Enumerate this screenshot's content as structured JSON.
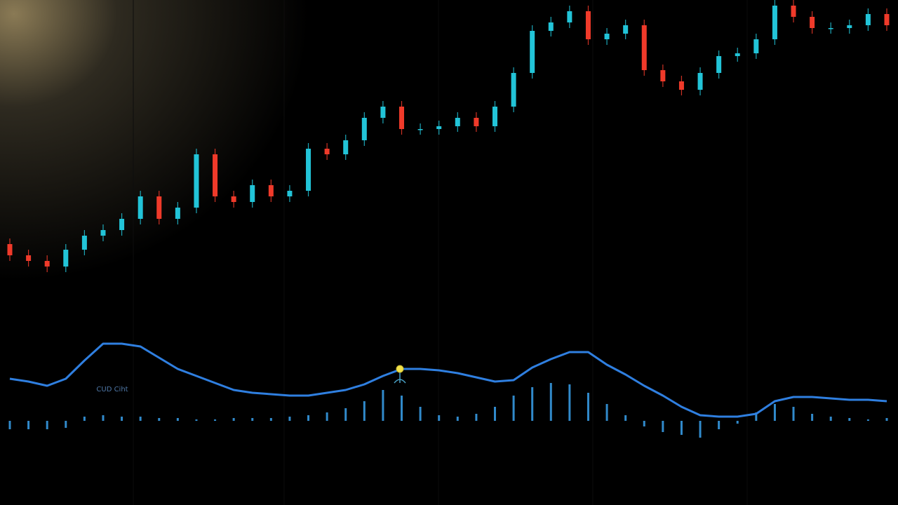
{
  "chart_data": [
    {
      "type": "candlestick",
      "open": [
        13,
        9,
        7,
        5,
        11,
        16,
        18,
        22,
        30,
        22,
        26,
        45,
        30,
        28,
        34,
        30,
        32,
        47,
        45,
        50,
        58,
        62,
        54,
        54,
        55,
        58,
        55,
        62,
        74,
        89,
        92,
        96,
        86,
        88,
        91,
        75,
        71,
        68,
        74,
        80,
        81,
        86,
        98,
        94,
        90,
        90,
        91,
        95
      ],
      "high": [
        15,
        11,
        9,
        13,
        18,
        20,
        24,
        32,
        32,
        28,
        47,
        47,
        32,
        36,
        36,
        34,
        49,
        49,
        52,
        60,
        64,
        64,
        56,
        57,
        60,
        60,
        64,
        76,
        91,
        94,
        98,
        98,
        90,
        93,
        93,
        77,
        73,
        76,
        82,
        83,
        88,
        100,
        100,
        96,
        92,
        93,
        97,
        97
      ],
      "low": [
        7,
        5,
        3,
        3,
        9,
        14,
        16,
        20,
        20,
        20,
        24,
        28,
        26,
        26,
        28,
        28,
        30,
        43,
        43,
        48,
        56,
        52,
        52,
        52,
        53,
        53,
        53,
        60,
        72,
        87,
        90,
        84,
        84,
        86,
        73,
        69,
        66,
        66,
        72,
        78,
        79,
        84,
        92,
        88,
        88,
        88,
        89,
        89
      ],
      "close": [
        9,
        7,
        5,
        11,
        16,
        18,
        22,
        30,
        22,
        26,
        45,
        30,
        28,
        34,
        30,
        32,
        47,
        45,
        50,
        58,
        62,
        54,
        54,
        55,
        58,
        55,
        62,
        74,
        89,
        92,
        96,
        86,
        88,
        91,
        75,
        71,
        68,
        74,
        80,
        81,
        86,
        98,
        94,
        90,
        90,
        91,
        95,
        91
      ],
      "up_color": "#22c4d8",
      "down_color": "#f03a2a",
      "ylim": [
        0,
        100
      ]
    },
    {
      "type": "line",
      "annotation": "CUD Ciht",
      "values": [
        30,
        28,
        25,
        30,
        43,
        55,
        55,
        53,
        45,
        37,
        32,
        27,
        22,
        20,
        19,
        18,
        18,
        20,
        22,
        26,
        32,
        37,
        37,
        36,
        34,
        31,
        28,
        29,
        38,
        44,
        49,
        49,
        40,
        33,
        25,
        18,
        10,
        4,
        3,
        3,
        5,
        14,
        17,
        17,
        16,
        15,
        15,
        14
      ],
      "color": "#2f7fe0",
      "bar_values": [
        -6,
        -6,
        -6,
        -5,
        3,
        4,
        3,
        3,
        2,
        2,
        1,
        1,
        2,
        2,
        2,
        3,
        4,
        6,
        9,
        14,
        22,
        18,
        10,
        4,
        3,
        5,
        10,
        18,
        24,
        27,
        26,
        20,
        12,
        4,
        -4,
        -8,
        -10,
        -12,
        -6,
        -2,
        6,
        12,
        10,
        5,
        3,
        2,
        1,
        2
      ],
      "bar_color": "#3aa2ee",
      "ylim": [
        -4,
        60
      ]
    }
  ]
}
